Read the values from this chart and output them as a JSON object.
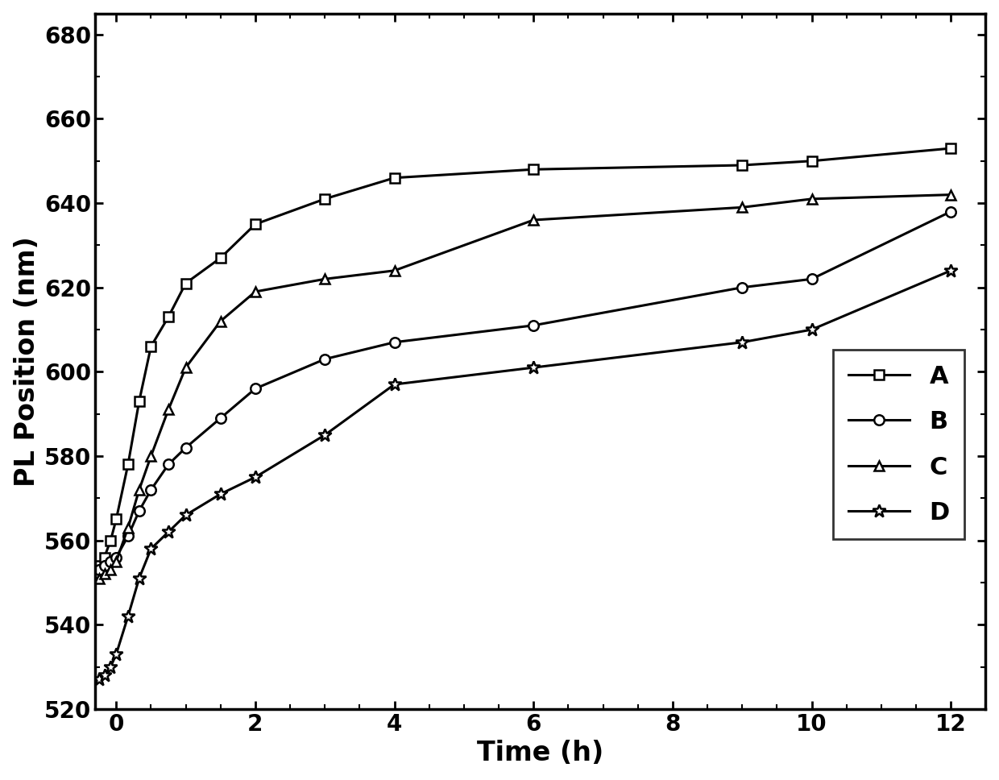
{
  "title": "",
  "xlabel": "Time (h)",
  "ylabel": "PL Position (nm)",
  "xlim": [
    -0.3,
    12.5
  ],
  "ylim": [
    520,
    685
  ],
  "xticks": [
    0,
    2,
    4,
    6,
    8,
    10,
    12
  ],
  "yticks": [
    520,
    540,
    560,
    580,
    600,
    620,
    640,
    660,
    680
  ],
  "series": [
    {
      "label": "A",
      "marker": "s",
      "x": [
        -0.25,
        -0.17,
        -0.08,
        0,
        0.17,
        0.33,
        0.5,
        0.75,
        1,
        1.5,
        2,
        3,
        4,
        6,
        9,
        10,
        12
      ],
      "y": [
        554,
        556,
        560,
        565,
        578,
        593,
        606,
        613,
        621,
        627,
        635,
        641,
        646,
        648,
        649,
        650,
        653
      ]
    },
    {
      "label": "B",
      "marker": "o",
      "x": [
        -0.25,
        -0.17,
        -0.08,
        0,
        0.17,
        0.33,
        0.5,
        0.75,
        1,
        1.5,
        2,
        3,
        4,
        6,
        9,
        10,
        12
      ],
      "y": [
        553,
        554,
        555,
        556,
        561,
        567,
        572,
        578,
        582,
        589,
        596,
        603,
        607,
        611,
        620,
        622,
        638
      ]
    },
    {
      "label": "C",
      "marker": "^",
      "x": [
        -0.25,
        -0.17,
        -0.08,
        0,
        0.17,
        0.33,
        0.5,
        0.75,
        1,
        1.5,
        2,
        3,
        4,
        6,
        9,
        10,
        12
      ],
      "y": [
        551,
        552,
        553,
        555,
        563,
        572,
        580,
        591,
        601,
        612,
        619,
        622,
        624,
        636,
        639,
        641,
        642
      ]
    },
    {
      "label": "D",
      "marker": "*",
      "x": [
        -0.25,
        -0.17,
        -0.08,
        0,
        0.17,
        0.33,
        0.5,
        0.75,
        1,
        1.5,
        2,
        3,
        4,
        6,
        9,
        10,
        12
      ],
      "y": [
        527,
        528,
        530,
        533,
        542,
        551,
        558,
        562,
        566,
        571,
        575,
        585,
        597,
        601,
        607,
        610,
        624
      ]
    }
  ],
  "line_color": "#000000",
  "linewidth": 2.2,
  "markersize_sq": 9,
  "markersize_circle": 9,
  "markersize_tri": 9,
  "markersize_star": 12,
  "legend_fontsize": 22,
  "axis_label_fontsize": 24,
  "tick_fontsize": 20,
  "background_color": "#ffffff"
}
